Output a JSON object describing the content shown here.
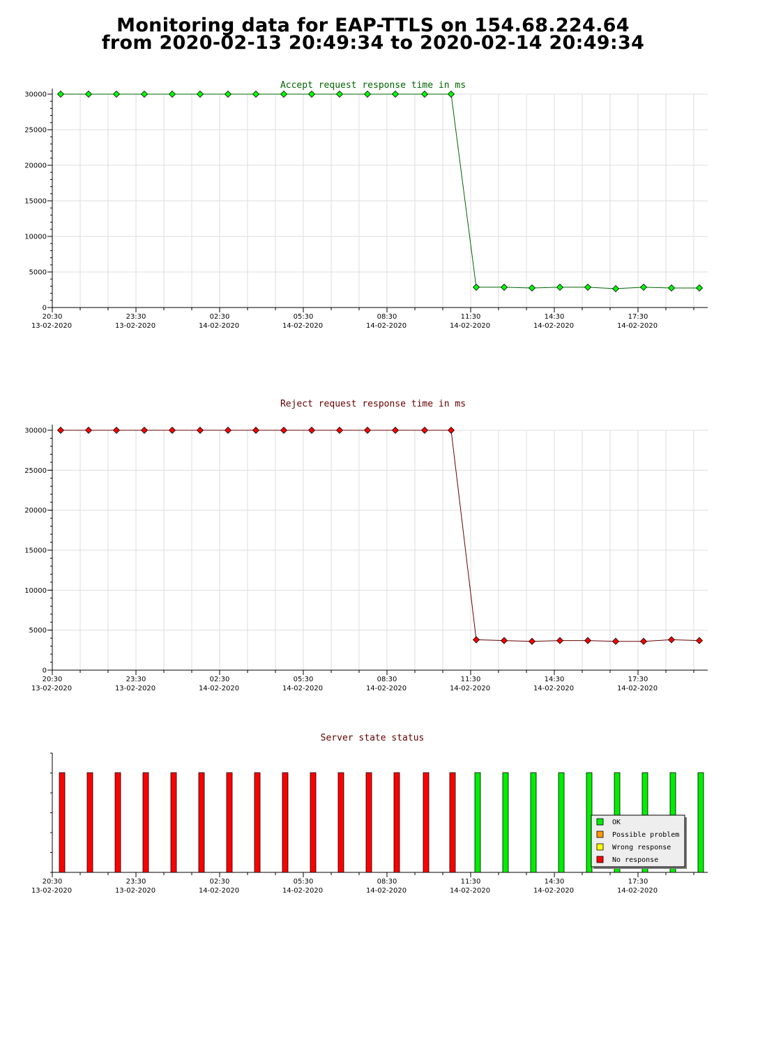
{
  "page": {
    "title_line1": "Monitoring data for EAP-TTLS on 154.68.224.64",
    "title_line2": "from 2020-02-13 20:49:34 to 2020-02-14 20:49:34"
  },
  "colors": {
    "accept_title": "#006400",
    "reject_title": "#640000",
    "status_title": "#640000",
    "accept_line": "#006400",
    "accept_marker": "#00ff00",
    "reject_line": "#640000",
    "reject_marker": "#ff0000",
    "ok": "#00ee00",
    "possible_problem": "#ff9900",
    "wrong_response": "#ffff00",
    "no_response": "#ff0000",
    "grid": "#dddddd"
  },
  "x_axis": {
    "tick_labels": [
      {
        "time": "20:30",
        "date": "13-02-2020"
      },
      {
        "time": "23:30",
        "date": "13-02-2020"
      },
      {
        "time": "02:30",
        "date": "14-02-2020"
      },
      {
        "time": "05:30",
        "date": "14-02-2020"
      },
      {
        "time": "08:30",
        "date": "14-02-2020"
      },
      {
        "time": "11:30",
        "date": "14-02-2020"
      },
      {
        "time": "14:30",
        "date": "14-02-2020"
      },
      {
        "time": "17:30",
        "date": "14-02-2020"
      }
    ]
  },
  "chart_data": [
    {
      "type": "line",
      "title": "Accept request response time in ms",
      "ylim": [
        0,
        30000
      ],
      "yticks": [
        0,
        5000,
        10000,
        15000,
        20000,
        25000,
        30000
      ],
      "grid": true,
      "x_hours_since_2030_13_02": [
        0.3,
        1.3,
        2.3,
        3.3,
        4.3,
        5.3,
        6.3,
        7.3,
        8.3,
        9.3,
        10.3,
        11.3,
        12.3,
        13.35,
        14.3,
        15.2,
        16.2,
        17.2,
        18.2,
        19.2,
        20.2,
        21.2,
        22.2,
        23.2
      ],
      "values": [
        30000,
        30000,
        30000,
        30000,
        30000,
        30000,
        30000,
        30000,
        30000,
        30000,
        30000,
        30000,
        30000,
        30000,
        30000,
        2850,
        2850,
        2750,
        2850,
        2850,
        2650,
        2850,
        2750,
        2750
      ]
    },
    {
      "type": "line",
      "title": "Reject request response time in ms",
      "ylim": [
        0,
        30000
      ],
      "yticks": [
        0,
        5000,
        10000,
        15000,
        20000,
        25000,
        30000
      ],
      "grid": true,
      "x_hours_since_2030_13_02": [
        0.3,
        1.3,
        2.3,
        3.3,
        4.3,
        5.3,
        6.3,
        7.3,
        8.3,
        9.3,
        10.3,
        11.3,
        12.3,
        13.35,
        14.3,
        15.2,
        16.2,
        17.2,
        18.2,
        19.2,
        20.2,
        21.2,
        22.2,
        23.2
      ],
      "values": [
        30000,
        30000,
        30000,
        30000,
        30000,
        30000,
        30000,
        30000,
        30000,
        30000,
        30000,
        30000,
        30000,
        30000,
        30000,
        3800,
        3700,
        3600,
        3700,
        3700,
        3600,
        3600,
        3800,
        3700
      ]
    },
    {
      "type": "bar",
      "title": "Server state status",
      "legend_placement": "bottom-right",
      "legend": [
        {
          "label": "OK",
          "color": "#00ee00"
        },
        {
          "label": "Possible problem",
          "color": "#ff9900"
        },
        {
          "label": "Wrong response",
          "color": "#ffff00"
        },
        {
          "label": "No response",
          "color": "#ff0000"
        }
      ],
      "x_hours_since_2030_13_02": [
        0.35,
        1.35,
        2.35,
        3.35,
        4.35,
        5.35,
        6.35,
        7.35,
        8.35,
        9.35,
        10.35,
        11.35,
        12.35,
        13.4,
        14.35,
        15.25,
        16.25,
        17.25,
        18.25,
        19.25,
        20.25,
        21.25,
        22.25,
        23.25
      ],
      "states": [
        "No response",
        "No response",
        "No response",
        "No response",
        "No response",
        "No response",
        "No response",
        "No response",
        "No response",
        "No response",
        "No response",
        "No response",
        "No response",
        "No response",
        "No response",
        "OK",
        "OK",
        "OK",
        "OK",
        "OK",
        "OK",
        "OK",
        "OK",
        "OK"
      ]
    }
  ]
}
